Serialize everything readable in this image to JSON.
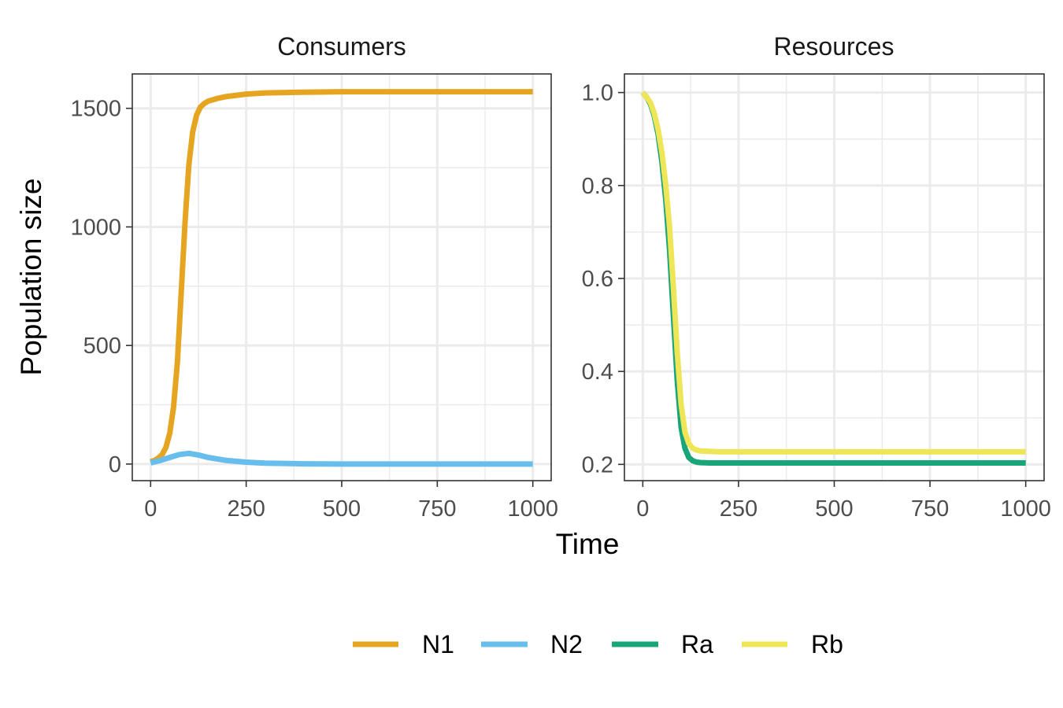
{
  "figure": {
    "ylabel": "Population size",
    "xlabel": "Time"
  },
  "chart_data": [
    {
      "type": "line",
      "title": "Consumers",
      "xlabel": "Time",
      "ylabel": "Population size",
      "xlim": [
        -48,
        1048
      ],
      "ylim": [
        -70,
        1645
      ],
      "x_ticks": [
        0,
        250,
        500,
        750,
        1000
      ],
      "x_tick_labels": [
        "0",
        "250",
        "500",
        "750",
        "1000"
      ],
      "y_ticks": [
        0,
        500,
        1000,
        1500
      ],
      "y_tick_labels": [
        "0",
        "500",
        "1000",
        "1500"
      ],
      "grid": true,
      "series": [
        {
          "name": "N1",
          "color": "#E6A521",
          "x": [
            0,
            10,
            20,
            30,
            40,
            50,
            60,
            70,
            80,
            90,
            100,
            110,
            120,
            130,
            140,
            150,
            175,
            200,
            250,
            300,
            400,
            500,
            600,
            700,
            800,
            900,
            1000
          ],
          "y": [
            10,
            15,
            25,
            40,
            70,
            130,
            240,
            430,
            720,
            1020,
            1260,
            1400,
            1470,
            1505,
            1520,
            1530,
            1542,
            1550,
            1560,
            1565,
            1568,
            1570,
            1570,
            1570,
            1570,
            1570,
            1570
          ]
        },
        {
          "name": "N2",
          "color": "#67BDEC",
          "x": [
            0,
            25,
            50,
            75,
            100,
            125,
            150,
            200,
            250,
            300,
            400,
            500,
            600,
            700,
            800,
            900,
            1000
          ],
          "y": [
            5,
            15,
            28,
            40,
            45,
            38,
            28,
            15,
            8,
            4,
            1,
            0,
            0,
            0,
            0,
            0,
            0
          ]
        }
      ]
    },
    {
      "type": "line",
      "title": "Resources",
      "xlabel": "Time",
      "xlim": [
        -48,
        1048
      ],
      "ylim": [
        0.165,
        1.04
      ],
      "x_ticks": [
        0,
        250,
        500,
        750,
        1000
      ],
      "x_tick_labels": [
        "0",
        "250",
        "500",
        "750",
        "1000"
      ],
      "y_ticks": [
        0.2,
        0.4,
        0.6,
        0.8,
        1.0
      ],
      "y_tick_labels": [
        "0.2",
        "0.4",
        "0.6",
        "0.8",
        "1.0"
      ],
      "grid": true,
      "series": [
        {
          "name": "Ra",
          "color": "#18A57A",
          "x": [
            0,
            10,
            20,
            30,
            40,
            50,
            60,
            70,
            80,
            90,
            100,
            110,
            120,
            130,
            140,
            150,
            175,
            200,
            300,
            500,
            750,
            1000
          ],
          "y": [
            1.0,
            0.99,
            0.975,
            0.95,
            0.91,
            0.85,
            0.77,
            0.66,
            0.52,
            0.38,
            0.28,
            0.235,
            0.215,
            0.208,
            0.205,
            0.204,
            0.203,
            0.203,
            0.203,
            0.203,
            0.203,
            0.203
          ]
        },
        {
          "name": "Rb",
          "color": "#EEE657",
          "x": [
            0,
            10,
            20,
            30,
            40,
            50,
            60,
            70,
            80,
            90,
            100,
            110,
            120,
            130,
            140,
            150,
            175,
            200,
            300,
            500,
            750,
            1000
          ],
          "y": [
            1.0,
            0.99,
            0.978,
            0.955,
            0.92,
            0.87,
            0.8,
            0.71,
            0.58,
            0.44,
            0.33,
            0.27,
            0.245,
            0.235,
            0.231,
            0.229,
            0.228,
            0.227,
            0.227,
            0.227,
            0.227,
            0.227
          ]
        }
      ]
    }
  ],
  "legend": {
    "placement": "bottom",
    "items": [
      {
        "label": "N1",
        "color": "#E6A521"
      },
      {
        "label": "N2",
        "color": "#67BDEC"
      },
      {
        "label": "Ra",
        "color": "#18A57A"
      },
      {
        "label": "Rb",
        "color": "#EEE657"
      }
    ]
  }
}
